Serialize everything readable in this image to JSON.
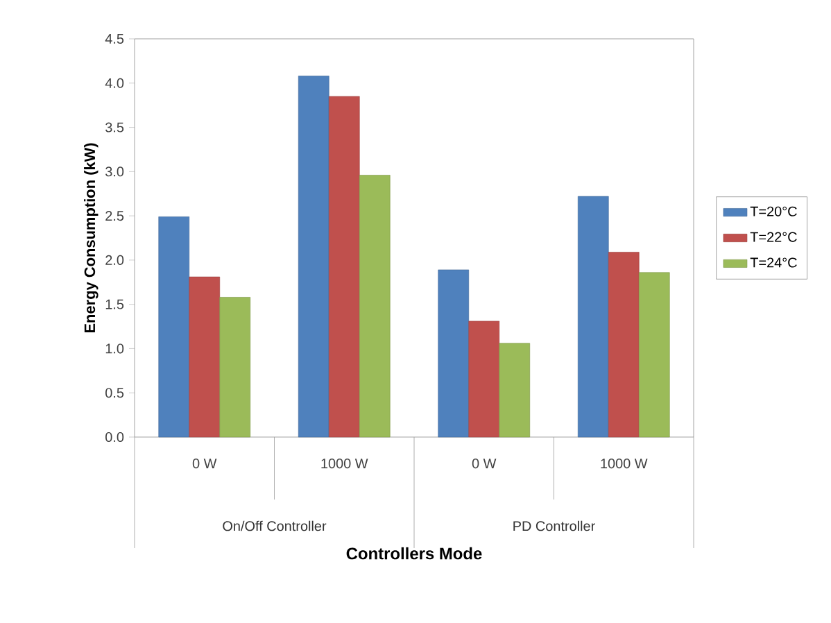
{
  "chart_data": {
    "type": "bar",
    "xlabel": "Controllers Mode",
    "ylabel": "Energy Consumption  (kW)",
    "categories": [
      "0 W",
      "1000 W",
      "0 W",
      "1000 W"
    ],
    "series": [
      {
        "name": "T=20°C",
        "color": "#4f81bd",
        "values": [
          2.49,
          4.08,
          1.89,
          2.72
        ]
      },
      {
        "name": "T=22°C",
        "color": "#c0504d",
        "values": [
          1.81,
          3.85,
          1.31,
          2.09
        ]
      },
      {
        "name": "T=24°C",
        "color": "#9bbb59",
        "values": [
          1.58,
          2.96,
          1.06,
          1.86
        ]
      }
    ],
    "annotations": [
      "On/Off Controller",
      "PD Controller"
    ],
    "ylim": [
      0,
      4.5
    ],
    "yticks": [
      {
        "value": 0,
        "label": "0.0"
      },
      {
        "value": 0.5,
        "label": "0.5"
      },
      {
        "value": 1,
        "label": "1.0"
      },
      {
        "value": 1.5,
        "label": "1.5"
      },
      {
        "value": 2,
        "label": "2.0"
      },
      {
        "value": 2.5,
        "label": "2.5"
      },
      {
        "value": 3,
        "label": "3.0"
      },
      {
        "value": 3.5,
        "label": "3.5"
      },
      {
        "value": 4,
        "label": "4.0"
      },
      {
        "value": 4.5,
        "label": "4.5"
      }
    ],
    "legend": "right",
    "grid": false
  }
}
